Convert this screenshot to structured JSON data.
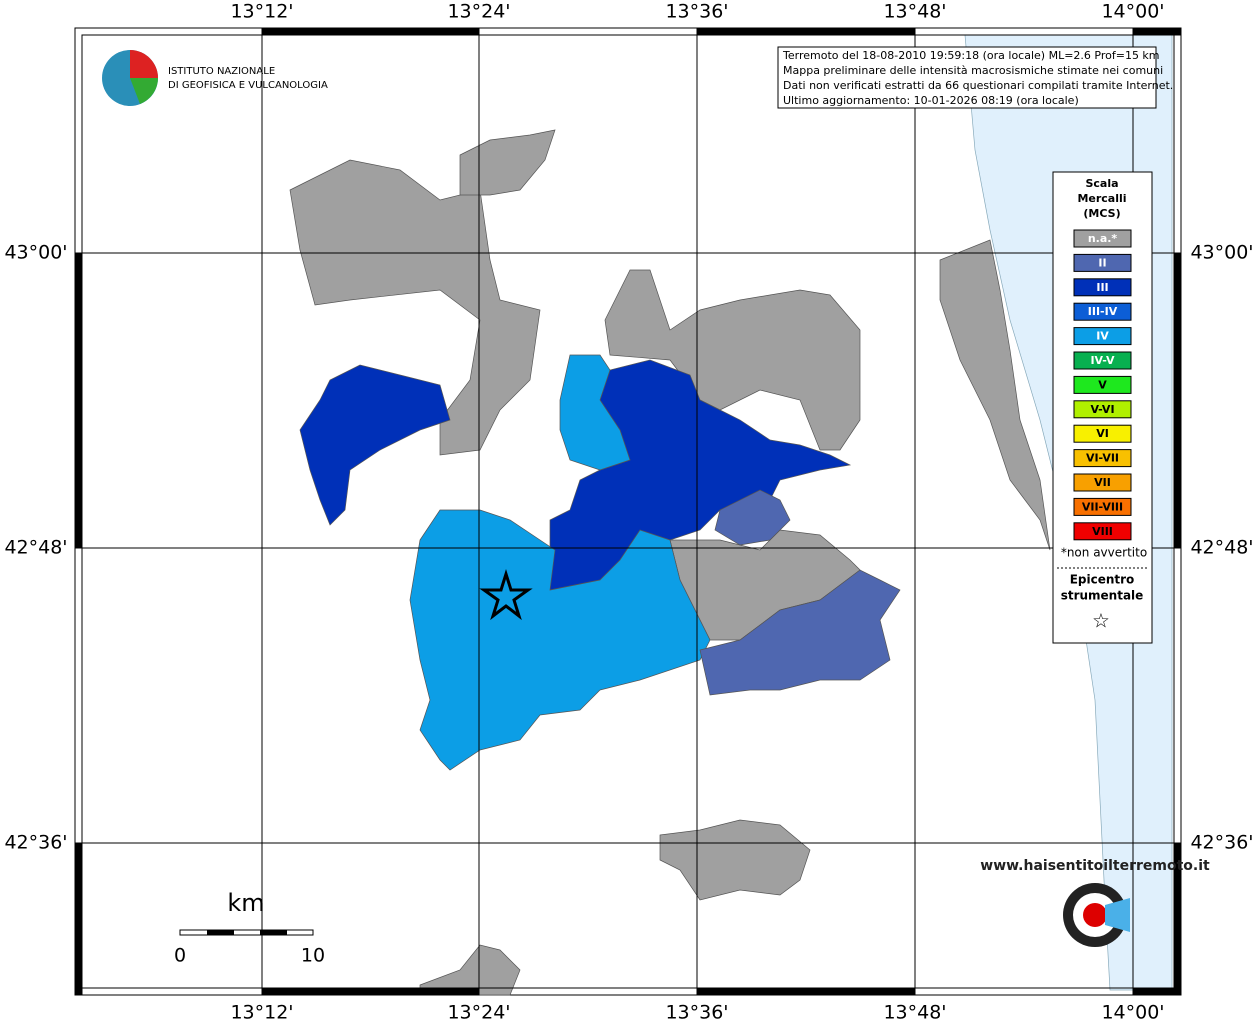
{
  "map": {
    "lon_labels": [
      "13°12'",
      "13°24'",
      "13°36'",
      "13°48'",
      "14°00'"
    ],
    "lat_labels": [
      "43°00'",
      "42°48'",
      "42°36'"
    ],
    "info": [
      "Terremoto del 18-08-2010 19:59:18 (ora locale) ML=2.6 Prof=15 km",
      "Mappa preliminare delle intensità macrosismiche stimate nei comuni",
      "Dati non verificati estratti da 66 questionari compilati tramite Internet.",
      "Ultimo aggiornamento: 10-01-2026 08:19 (ora locale)"
    ],
    "logo": [
      "ISTITUTO NAZIONALE",
      "DI GEOFISICA E VULCANOLOGIA"
    ],
    "legend": {
      "title": [
        "Scala",
        "Mercalli",
        "(MCS)"
      ],
      "items": [
        {
          "label": "n.a.*",
          "color": "#a0a0a0"
        },
        {
          "label": "II",
          "color": "#4f67b0"
        },
        {
          "label": "III",
          "color": "#0030b8"
        },
        {
          "label": "III-IV",
          "color": "#0c5ed6"
        },
        {
          "label": "IV",
          "color": "#0c9ee6"
        },
        {
          "label": "IV-V",
          "color": "#08b050"
        },
        {
          "label": "V",
          "color": "#1ee81e"
        },
        {
          "label": "V-VI",
          "color": "#b0f000"
        },
        {
          "label": "VI",
          "color": "#f8f000"
        },
        {
          "label": "VI-VII",
          "color": "#f8c000"
        },
        {
          "label": "VII",
          "color": "#f8a000"
        },
        {
          "label": "VII-VIII",
          "color": "#f87000"
        },
        {
          "label": "VIII",
          "color": "#f00000"
        }
      ],
      "note": "*non avvertito",
      "epicenter": [
        "Epicentro",
        "strumentale"
      ],
      "star": "☆"
    },
    "scale": {
      "unit": "km",
      "ticks": [
        "0",
        "10"
      ]
    },
    "site": "www.haisentitoilterremoto.it"
  }
}
